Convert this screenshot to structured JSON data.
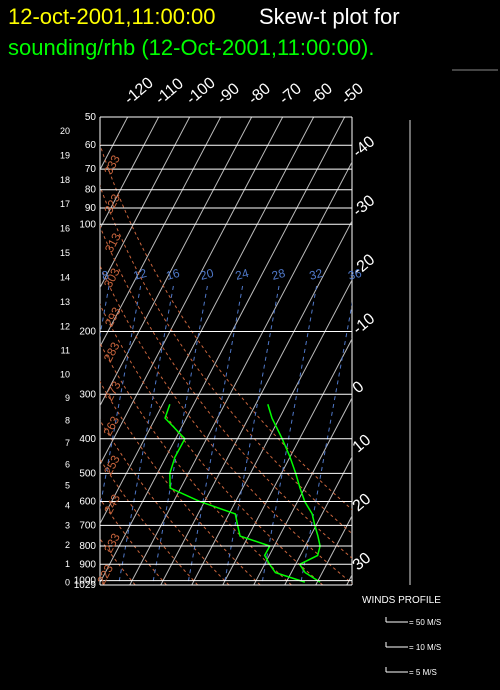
{
  "chart_data": {
    "type": "skewt",
    "title_time": "12-oct-2001,11:00:00",
    "title_text": "Skew-t plot for",
    "subtitle": "sounding/rhb (12-Oct-2001,11:00:00).",
    "log_y": true,
    "ylim": [
      1029,
      50
    ],
    "yticks": [
      50,
      60,
      70,
      80,
      90,
      100,
      200,
      300,
      400,
      500,
      600,
      700,
      800,
      900,
      1000,
      1029
    ],
    "isotherms": [
      -120,
      -110,
      -100,
      -90,
      -80,
      -70,
      -60,
      -50,
      -40,
      -30,
      -20,
      -10,
      0,
      10,
      20,
      30
    ],
    "height_km_ticks": [
      0,
      1,
      2,
      3,
      4,
      5,
      6,
      7,
      8,
      9,
      10,
      11,
      12,
      13,
      14,
      15,
      16,
      17,
      18,
      19,
      20
    ],
    "dry_adiabats": [
      223,
      233,
      243,
      253,
      263,
      273,
      283,
      293,
      303,
      313,
      323,
      333
    ],
    "dry_adiabat_color": "#c8643c",
    "mixing_ratio_labels": [
      8,
      12,
      16,
      20,
      24,
      28,
      32,
      36
    ],
    "mixing_ratio_color": "#4f78c8",
    "series": [
      {
        "color": "#00ff00",
        "pressure": [
          1010,
          950,
          900,
          850,
          800,
          750,
          700,
          650,
          600,
          550,
          500,
          450,
          400,
          350,
          320
        ],
        "values": [
          20.9,
          14.5,
          11.3,
          15.6,
          14.8,
          12.4,
          9.6,
          6.8,
          2.3,
          -1.5,
          -5.4,
          -10,
          -15.6,
          -22.4,
          -26.1
        ]
      },
      {
        "color": "#00ff00",
        "pressure": [
          1010,
          950,
          900,
          850,
          800,
          750,
          700,
          650,
          600,
          550,
          500,
          450,
          400,
          350,
          320
        ],
        "values": [
          16.0,
          4.9,
          1.6,
          -1.5,
          -1.4,
          -12.7,
          -15.3,
          -18,
          -31.5,
          -43.4,
          -46,
          -47.1,
          -47,
          -56.9,
          -57.7
        ]
      }
    ],
    "winds_title": "WINDS PROFILE",
    "wind_legend": [
      {
        "value": 50,
        "label": "= 50 M/S"
      },
      {
        "value": 10,
        "label": "= 10 M/S"
      },
      {
        "value": 5,
        "label": "= 5 M/S"
      }
    ]
  }
}
